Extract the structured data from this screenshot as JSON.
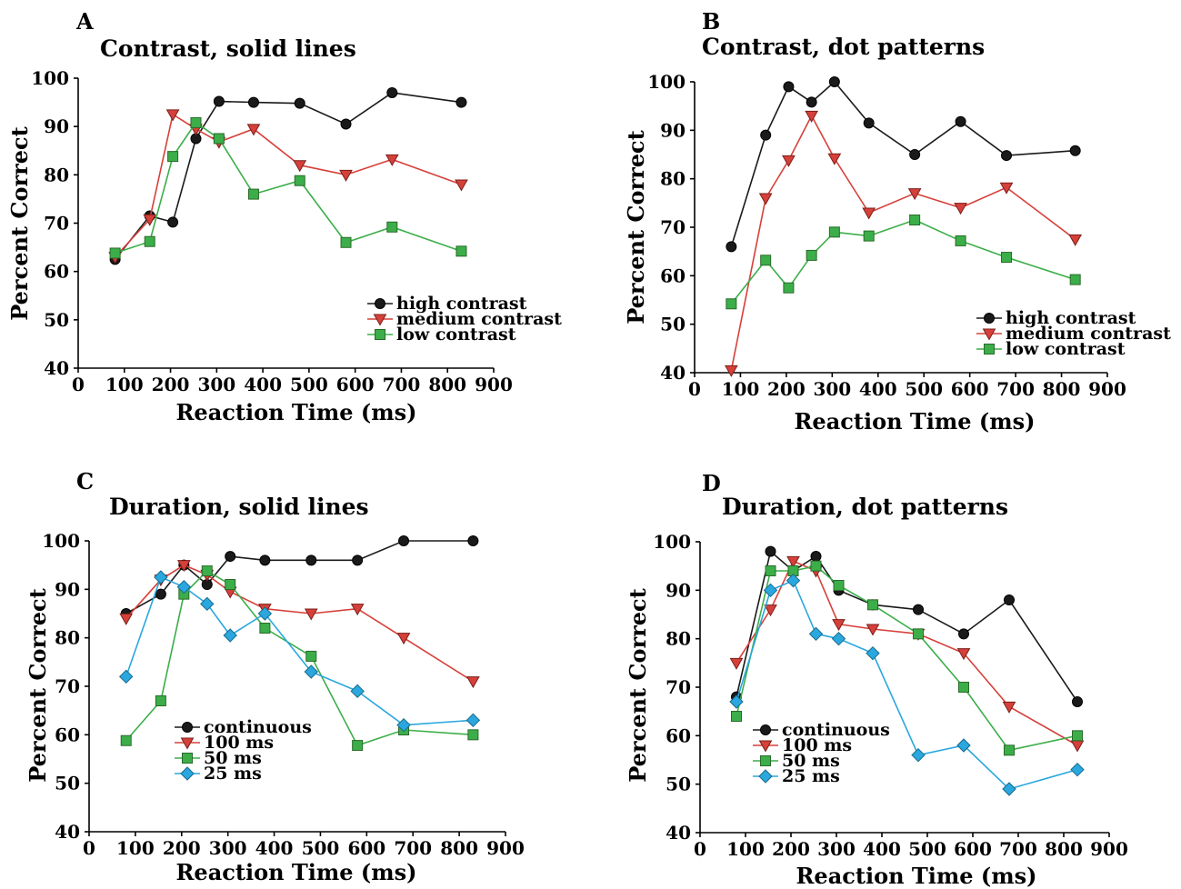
{
  "colors": {
    "black": "#1a1a1a",
    "red": "#d6403a",
    "green": "#3cae49",
    "blue": "#2aa7de"
  },
  "chart_data": [
    {
      "panel": "A",
      "title": "Contrast, solid lines",
      "type": "line",
      "xlabel": "Reaction Time (ms)",
      "ylabel": "Percent Correct",
      "xlim": [
        0,
        900
      ],
      "ylim": [
        40,
        100
      ],
      "xticks": [
        0,
        100,
        200,
        300,
        400,
        500,
        600,
        700,
        800,
        900
      ],
      "yticks": [
        40,
        50,
        60,
        70,
        80,
        90,
        100
      ],
      "legend_position": "lower-right",
      "series": [
        {
          "name": "high contrast",
          "color": "#1a1a1a",
          "marker": "circle",
          "x": [
            80,
            155,
            205,
            255,
            305,
            380,
            480,
            580,
            680,
            830
          ],
          "y": [
            62.5,
            71.5,
            70.2,
            87.5,
            95.2,
            95.0,
            94.8,
            90.5,
            97.0,
            95.0
          ]
        },
        {
          "name": "medium contrast",
          "color": "#d6403a",
          "marker": "triangle-down",
          "x": [
            80,
            155,
            205,
            255,
            305,
            380,
            480,
            580,
            680,
            830
          ],
          "y": [
            63.0,
            70.8,
            92.5,
            89.5,
            86.8,
            89.5,
            82.0,
            80.0,
            83.2,
            78.0
          ]
        },
        {
          "name": "low contrast",
          "color": "#3cae49",
          "marker": "square",
          "x": [
            80,
            155,
            205,
            255,
            305,
            380,
            480,
            580,
            680,
            830
          ],
          "y": [
            63.8,
            66.2,
            83.8,
            90.8,
            87.5,
            76.0,
            78.8,
            66.0,
            69.2,
            64.2
          ]
        }
      ]
    },
    {
      "panel": "B",
      "title": "Contrast, dot patterns",
      "type": "line",
      "xlabel": "Reaction Time (ms)",
      "ylabel": "Percent Correct",
      "xlim": [
        0,
        900
      ],
      "ylim": [
        40,
        100
      ],
      "xticks": [
        0,
        100,
        200,
        300,
        400,
        500,
        600,
        700,
        800,
        900
      ],
      "yticks": [
        40,
        50,
        60,
        70,
        80,
        90,
        100
      ],
      "legend_position": "lower-right",
      "series": [
        {
          "name": "high contrast",
          "color": "#1a1a1a",
          "marker": "circle",
          "x": [
            80,
            155,
            205,
            255,
            305,
            380,
            480,
            580,
            680,
            830
          ],
          "y": [
            66.0,
            89.0,
            99.0,
            95.8,
            100.0,
            91.5,
            85.0,
            91.8,
            84.8,
            85.8
          ]
        },
        {
          "name": "medium contrast",
          "color": "#d6403a",
          "marker": "triangle-down",
          "x": [
            80,
            155,
            205,
            255,
            305,
            380,
            480,
            580,
            680,
            830
          ],
          "y": [
            40.5,
            76.0,
            83.8,
            93.0,
            84.2,
            73.0,
            77.0,
            74.0,
            78.2,
            67.5
          ]
        },
        {
          "name": "low contrast",
          "color": "#3cae49",
          "marker": "square",
          "x": [
            80,
            155,
            205,
            255,
            305,
            380,
            480,
            580,
            680,
            830
          ],
          "y": [
            54.2,
            63.2,
            57.5,
            64.2,
            69.0,
            68.2,
            71.5,
            67.2,
            63.8,
            59.2
          ]
        }
      ]
    },
    {
      "panel": "C",
      "title": "Duration, solid lines",
      "type": "line",
      "xlabel": "Reaction Time (ms)",
      "ylabel": "Percent Correct",
      "xlim": [
        0,
        900
      ],
      "ylim": [
        40,
        100
      ],
      "xticks": [
        0,
        100,
        200,
        300,
        400,
        500,
        600,
        700,
        800,
        900
      ],
      "yticks": [
        40,
        50,
        60,
        70,
        80,
        90,
        100
      ],
      "legend_position": "lower-left",
      "series": [
        {
          "name": "continuous",
          "color": "#1a1a1a",
          "marker": "circle",
          "x": [
            80,
            155,
            205,
            255,
            305,
            380,
            480,
            580,
            680,
            830
          ],
          "y": [
            85.0,
            89.0,
            95.0,
            91.0,
            96.8,
            96.0,
            96.0,
            96.0,
            100.0,
            100.0
          ]
        },
        {
          "name": "100 ms",
          "color": "#d6403a",
          "marker": "triangle-down",
          "x": [
            80,
            155,
            205,
            255,
            305,
            380,
            480,
            580,
            680,
            830
          ],
          "y": [
            84.0,
            92.0,
            95.0,
            93.0,
            89.5,
            86.0,
            85.0,
            86.0,
            80.0,
            71.0
          ]
        },
        {
          "name": "50 ms",
          "color": "#3cae49",
          "marker": "square",
          "x": [
            80,
            155,
            205,
            255,
            305,
            380,
            480,
            580,
            680,
            830
          ],
          "y": [
            58.8,
            67.0,
            89.0,
            93.8,
            91.0,
            82.0,
            76.2,
            57.8,
            61.0,
            60.0
          ]
        },
        {
          "name": "25 ms",
          "color": "#2aa7de",
          "marker": "diamond",
          "x": [
            80,
            155,
            205,
            255,
            305,
            380,
            480,
            580,
            680,
            830
          ],
          "y": [
            72.0,
            92.5,
            90.5,
            87.0,
            80.5,
            85.0,
            73.0,
            69.0,
            62.0,
            63.0
          ]
        }
      ]
    },
    {
      "panel": "D",
      "title": "Duration, dot patterns",
      "type": "line",
      "xlabel": "Reaction Time (ms)",
      "ylabel": "Percent Correct",
      "xlim": [
        0,
        900
      ],
      "ylim": [
        40,
        100
      ],
      "xticks": [
        0,
        100,
        200,
        300,
        400,
        500,
        600,
        700,
        800,
        900
      ],
      "yticks": [
        40,
        50,
        60,
        70,
        80,
        90,
        100
      ],
      "legend_position": "lower-left",
      "series": [
        {
          "name": "continuous",
          "color": "#1a1a1a",
          "marker": "circle",
          "x": [
            80,
            155,
            205,
            255,
            305,
            380,
            480,
            580,
            680,
            830
          ],
          "y": [
            68.0,
            98.0,
            94.0,
            97.0,
            90.0,
            87.0,
            86.0,
            81.0,
            88.0,
            67.0
          ]
        },
        {
          "name": "100 ms",
          "color": "#d6403a",
          "marker": "triangle-down",
          "x": [
            80,
            155,
            205,
            255,
            305,
            380,
            480,
            580,
            680,
            830
          ],
          "y": [
            75.0,
            86.0,
            96.0,
            94.0,
            83.0,
            82.0,
            81.0,
            77.0,
            66.0,
            58.0
          ]
        },
        {
          "name": "50 ms",
          "color": "#3cae49",
          "marker": "square",
          "x": [
            80,
            155,
            205,
            255,
            305,
            380,
            480,
            580,
            680,
            830
          ],
          "y": [
            64.0,
            94.0,
            94.0,
            95.0,
            91.0,
            87.0,
            81.0,
            70.0,
            57.0,
            60.0
          ]
        },
        {
          "name": "25 ms",
          "color": "#2aa7de",
          "marker": "diamond",
          "x": [
            80,
            155,
            205,
            255,
            305,
            380,
            480,
            580,
            680,
            830
          ],
          "y": [
            67.0,
            90.0,
            92.0,
            81.0,
            80.0,
            77.0,
            56.0,
            58.0,
            49.0,
            53.0
          ]
        }
      ]
    }
  ]
}
